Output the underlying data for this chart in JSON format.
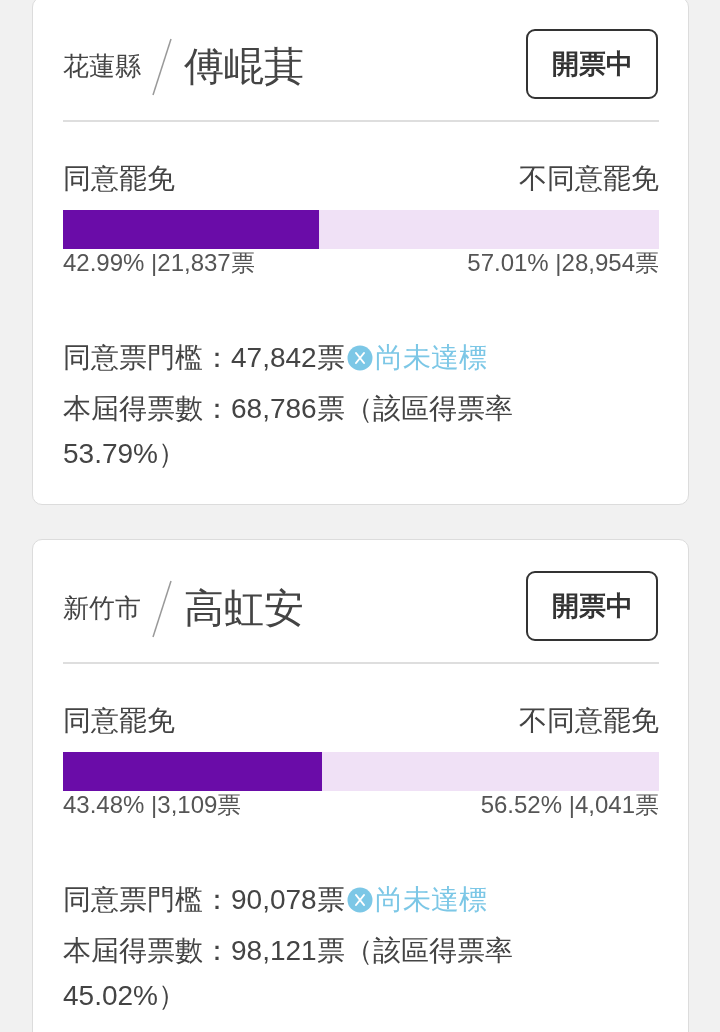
{
  "chart_data": [
    {
      "type": "bar",
      "orientation": "horizontal",
      "stacked": true,
      "title": "傅崐萁",
      "subtitle": "花蓮縣",
      "categories": [
        null
      ],
      "series": [
        {
          "name": "同意罷免",
          "color": "#6a0ca8",
          "values": [
            42.99
          ],
          "value_labels": [
            "42.99% |21,837票"
          ]
        },
        {
          "name": "不同意罷免",
          "color": "#f0e1f6",
          "values": [
            57.01
          ],
          "value_labels": [
            "57.01% |28,954票"
          ]
        }
      ],
      "annotations": [
        "開票中",
        "同意票門檻：47,842票",
        "尚未達標",
        "本屆得票數：68,786票（該區得票率53.79%）"
      ]
    },
    {
      "type": "bar",
      "orientation": "horizontal",
      "stacked": true,
      "title": "高虹安",
      "subtitle": "新竹市",
      "categories": [
        null
      ],
      "series": [
        {
          "name": "同意罷免",
          "color": "#6a0ca8",
          "values": [
            43.48
          ],
          "value_labels": [
            "43.48% |3,109票"
          ]
        },
        {
          "name": "不同意罷免",
          "color": "#f0e1f6",
          "values": [
            56.52
          ],
          "value_labels": [
            "56.52% |4,041票"
          ]
        }
      ],
      "annotations": [
        "開票中",
        "同意票門檻：90,078票",
        "尚未達標",
        "本屆得票數：98,121票（該區得票率45.02%）"
      ]
    }
  ]
}
